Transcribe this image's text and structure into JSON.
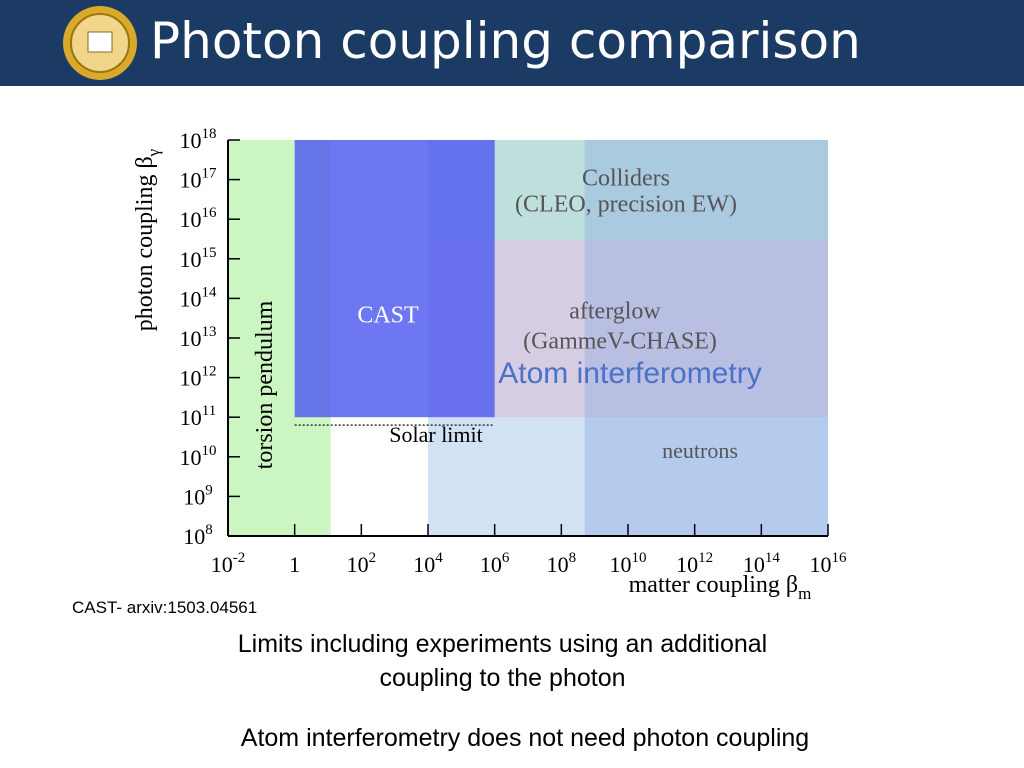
{
  "header": {
    "title": "Photon coupling comparison"
  },
  "chart_data": {
    "type": "region",
    "x_label": {
      "text": "matter coupling β",
      "sub": "m"
    },
    "y_label": {
      "text": "photon coupling β",
      "sub": "γ"
    },
    "xscale": "log",
    "yscale": "log",
    "xlim": [
      0.01,
      1e+16
    ],
    "ylim": [
      100000000.0,
      1e+18
    ],
    "xticks": [
      {
        "value": 0.01,
        "label": [
          "10",
          "-2"
        ]
      },
      {
        "value": 1,
        "label": [
          "1"
        ]
      },
      {
        "value": 100,
        "label": [
          "10",
          "2"
        ]
      },
      {
        "value": 10000,
        "label": [
          "10",
          "4"
        ]
      },
      {
        "value": 1000000,
        "label": [
          "10",
          "6"
        ]
      },
      {
        "value": 100000000,
        "label": [
          "10",
          "8"
        ]
      },
      {
        "value": 10000000000.0,
        "label": [
          "10",
          "10"
        ]
      },
      {
        "value": 1000000000000.0,
        "label": [
          "10",
          "12"
        ]
      },
      {
        "value": 100000000000000.0,
        "label": [
          "10",
          "14"
        ]
      },
      {
        "value": 1e+16,
        "label": [
          "10",
          "16"
        ]
      }
    ],
    "yticks": [
      {
        "value": 100000000.0,
        "label": [
          "10",
          "8"
        ]
      },
      {
        "value": 1000000000.0,
        "label": [
          "10",
          "9"
        ]
      },
      {
        "value": 10000000000.0,
        "label": [
          "10",
          "10"
        ]
      },
      {
        "value": 100000000000.0,
        "label": [
          "10",
          "11"
        ]
      },
      {
        "value": 1000000000000.0,
        "label": [
          "10",
          "12"
        ]
      },
      {
        "value": 10000000000000.0,
        "label": [
          "10",
          "13"
        ]
      },
      {
        "value": 100000000000000.0,
        "label": [
          "10",
          "14"
        ]
      },
      {
        "value": 1000000000000000.0,
        "label": [
          "10",
          "15"
        ]
      },
      {
        "value": 1e+16,
        "label": [
          "10",
          "16"
        ]
      },
      {
        "value": 1e+17,
        "label": [
          "10",
          "17"
        ]
      },
      {
        "value": 1e+18,
        "label": [
          "10",
          "18"
        ]
      }
    ],
    "regions": [
      {
        "label": [
          "torsion pendulum"
        ],
        "x": [
          0.01,
          12
        ],
        "y": [
          100000000.0,
          1e+18
        ],
        "color": "rgba(200,245,190,0.95)"
      },
      {
        "label": [
          "Atom interferometry"
        ],
        "x": [
          10000,
          1e+16
        ],
        "y": [
          100000000.0,
          1e+18
        ],
        "color": "rgba(150,190,230,0.45)"
      },
      {
        "label": [
          "Colliders",
          "(CLEO, precision EW)"
        ],
        "x": [
          10000,
          1e+16
        ],
        "y": [
          3000000000000000.0,
          1e+18
        ],
        "color": "rgba(175,220,200,0.55)"
      },
      {
        "label": [
          "afterglow",
          "(GammeV-CHASE)"
        ],
        "x": [
          10000,
          1e+16
        ],
        "y": [
          100000000000.0,
          3000000000000000.0
        ],
        "color": "rgba(225,180,205,0.45)"
      },
      {
        "label": [
          "neutrons"
        ],
        "x": [
          500000000,
          1e+16
        ],
        "y": [
          100000000.0,
          1e+18
        ],
        "color": "rgba(140,170,230,0.4)"
      },
      {
        "label": [
          "CAST"
        ],
        "x": [
          1,
          1000000
        ],
        "y": [
          100000000000.0,
          1e+18
        ],
        "color": "rgba(85,95,240,0.85)"
      }
    ],
    "solar_limit": {
      "label": "Solar limit",
      "x": [
        1,
        1000000
      ],
      "y": 63000000000
    }
  },
  "footer": {
    "reference": "CAST-  arxiv:1503.04561",
    "caption": [
      "Limits including experiments using an additional",
      "coupling to the photon"
    ],
    "note": "Atom interferometry does not need photon coupling"
  }
}
